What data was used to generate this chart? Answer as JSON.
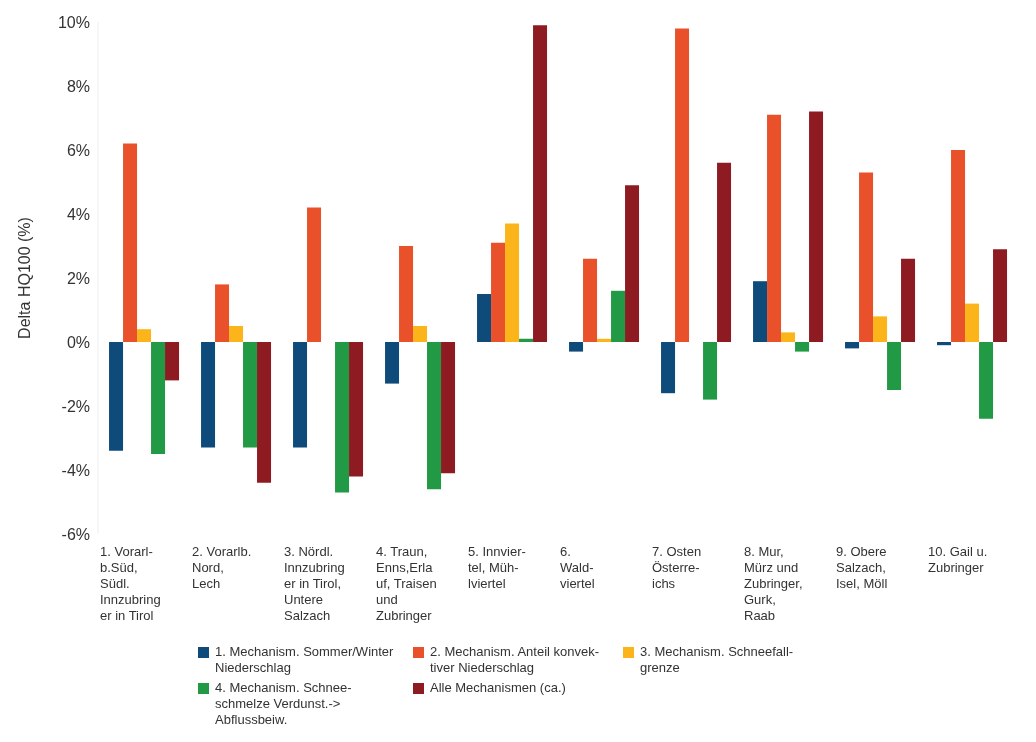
{
  "chart_data": {
    "type": "bar",
    "ylabel": "Delta HQ100 (%)",
    "categories": [
      "1. Vorarl-\nb.Süd,\nSüdl.\nInnzubring\ner in Tirol",
      "2. Vorarlb.\nNord,\nLech",
      "3. Nördl.\nInnzubring\ner in Tirol,\nUntere\nSalzach",
      "4. Traun,\nEnns,Erla\nuf, Traisen\nund\nZubringer",
      "5. Innvier-\ntel, Müh-\nlviertel",
      "6.\nWald-\nviertel",
      "7. Osten\nÖsterre-\nichs",
      "8. Mur,\nMürz und\nZubringer,\nGurk,\nRaab",
      "9. Obere\nSalzach,\nIsel, Möll",
      "10. Gail u.\nZubringer"
    ],
    "series": [
      {
        "name": "1. Mechanism. Sommer/Winter\nNiederschlag",
        "color": "#0e4a7a",
        "values": [
          -3.4,
          -3.3,
          -3.3,
          -1.3,
          1.5,
          -0.3,
          -1.6,
          1.9,
          -0.2,
          -0.1
        ]
      },
      {
        "name": "2. Mechanism. Anteil konvek-\ntiver Niederschlag",
        "color": "#e8512a",
        "values": [
          6.2,
          1.8,
          4.2,
          3.0,
          3.1,
          2.6,
          9.8,
          7.1,
          5.3,
          6.0
        ]
      },
      {
        "name": "3. Mechanism. Schneefall-\ngrenze",
        "color": "#fbb41a",
        "values": [
          0.4,
          0.5,
          0,
          0.5,
          3.7,
          0.1,
          0,
          0.3,
          0.8,
          1.2
        ]
      },
      {
        "name": "4. Mechanism. Schnee-\nschmelze Verdunst.->\nAbflussbeiw.",
        "color": "#229944",
        "values": [
          -3.5,
          -3.3,
          -4.7,
          -4.6,
          0.1,
          1.6,
          -1.8,
          -0.3,
          -1.5,
          -2.4
        ]
      },
      {
        "name": "Alle Mechanismen (ca.)",
        "color": "#8e1a22",
        "values": [
          -1.2,
          -4.4,
          -4.2,
          -4.1,
          9.9,
          4.9,
          5.6,
          7.2,
          2.6,
          2.9
        ]
      }
    ],
    "ylim": [
      -6,
      10
    ],
    "yticks": [
      {
        "value": -6,
        "label": "-6%"
      },
      {
        "value": -4,
        "label": "-4%"
      },
      {
        "value": -2,
        "label": "-2%"
      },
      {
        "value": 0,
        "label": "0%"
      },
      {
        "value": 2,
        "label": "2%"
      },
      {
        "value": 4,
        "label": "4%"
      },
      {
        "value": 6,
        "label": "6%"
      },
      {
        "value": 8,
        "label": "8%"
      },
      {
        "value": 10,
        "label": "10%"
      }
    ],
    "grid": false,
    "legend": "bottom"
  }
}
